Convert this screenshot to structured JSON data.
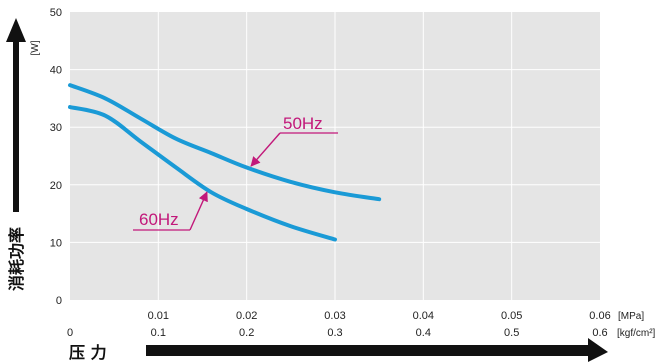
{
  "chart_data": {
    "type": "line",
    "ylabel": "消耗功率",
    "y_unit": "[W]",
    "xlabel": "压 力",
    "x_unit_primary": "[MPa]",
    "x_unit_secondary": "[kgf/cm²]",
    "ylim": [
      0,
      50
    ],
    "xlim": [
      0,
      0.06
    ],
    "y_ticks": [
      "0",
      "10",
      "20",
      "30",
      "40",
      "50"
    ],
    "x_ticks_primary": [
      {
        "x": 0.01,
        "label": "0.01"
      },
      {
        "x": 0.02,
        "label": "0.02"
      },
      {
        "x": 0.03,
        "label": "0.03"
      },
      {
        "x": 0.04,
        "label": "0.04"
      },
      {
        "x": 0.05,
        "label": "0.05"
      },
      {
        "x": 0.06,
        "label": "0.06"
      }
    ],
    "x_ticks_secondary": [
      {
        "x": 0,
        "label": "0"
      },
      {
        "x": 0.01,
        "label": "0.1"
      },
      {
        "x": 0.02,
        "label": "0.2"
      },
      {
        "x": 0.03,
        "label": "0.3"
      },
      {
        "x": 0.04,
        "label": "0.4"
      },
      {
        "x": 0.05,
        "label": "0.5"
      },
      {
        "x": 0.06,
        "label": "0.6"
      }
    ],
    "grid": true,
    "series": [
      {
        "name": "50Hz",
        "color": "#1a9ad6",
        "x": [
          0,
          0.004,
          0.008,
          0.012,
          0.016,
          0.02,
          0.025,
          0.03,
          0.035
        ],
        "y": [
          37.3,
          35,
          31.5,
          28,
          25.5,
          23,
          20.5,
          18.7,
          17.5
        ]
      },
      {
        "name": "60Hz",
        "color": "#1a9ad6",
        "x": [
          0,
          0.004,
          0.008,
          0.012,
          0.016,
          0.02,
          0.025,
          0.03
        ],
        "y": [
          33.5,
          32,
          27.5,
          23,
          18.7,
          15.8,
          12.8,
          10.5
        ]
      }
    ],
    "annotation_color": "#c2187a",
    "annotations": [
      {
        "text": "50Hz",
        "series": "50Hz"
      },
      {
        "text": "60Hz",
        "series": "60Hz"
      }
    ],
    "colors": {
      "plot_background": "#e5e5e5",
      "grid": "#ffffff",
      "arrow": "#111111"
    }
  }
}
